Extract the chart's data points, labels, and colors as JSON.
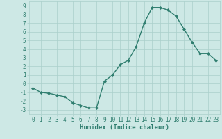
{
  "x": [
    0,
    1,
    2,
    3,
    4,
    5,
    6,
    7,
    8,
    9,
    10,
    11,
    12,
    13,
    14,
    15,
    16,
    17,
    18,
    19,
    20,
    21,
    22,
    23
  ],
  "y": [
    -0.5,
    -1.0,
    -1.1,
    -1.3,
    -1.5,
    -2.2,
    -2.5,
    -2.8,
    -2.8,
    0.3,
    1.0,
    2.2,
    2.7,
    4.3,
    7.0,
    8.8,
    8.8,
    8.5,
    7.8,
    6.3,
    4.8,
    3.5,
    3.5,
    2.7
  ],
  "line_color": "#2e7d6e",
  "marker": "D",
  "marker_size": 2.0,
  "bg_color": "#cde8e5",
  "grid_color": "#aacfcb",
  "xlabel": "Humidex (Indice chaleur)",
  "xlim": [
    -0.5,
    23.5
  ],
  "ylim": [
    -3.5,
    9.5
  ],
  "yticks": [
    -3,
    -2,
    -1,
    0,
    1,
    2,
    3,
    4,
    5,
    6,
    7,
    8,
    9
  ],
  "xticks": [
    0,
    1,
    2,
    3,
    4,
    5,
    6,
    7,
    8,
    9,
    10,
    11,
    12,
    13,
    14,
    15,
    16,
    17,
    18,
    19,
    20,
    21,
    22,
    23
  ],
  "tick_fontsize": 5.5,
  "label_fontsize": 6.5,
  "line_width": 1.0
}
